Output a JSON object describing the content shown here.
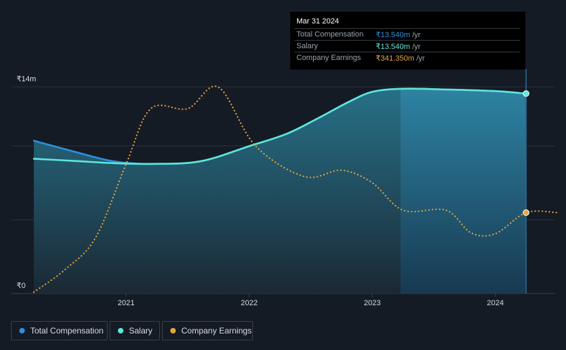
{
  "chart_data": {
    "type": "line",
    "x_ticks": [
      "2021",
      "2022",
      "2023",
      "2024"
    ],
    "y_ticks": [
      "₹14m",
      "₹0"
    ],
    "ylim_m": [
      0,
      14
    ],
    "series": [
      {
        "name": "Total Compensation",
        "color": "#2e8fe0",
        "points": [
          [
            2020.25,
            10.35
          ],
          [
            2020.6,
            9.56
          ],
          [
            2020.9,
            8.95
          ],
          [
            2021.2,
            8.78
          ],
          [
            2021.6,
            8.95
          ],
          [
            2022.0,
            9.98
          ],
          [
            2022.3,
            10.8
          ],
          [
            2022.55,
            11.83
          ],
          [
            2022.8,
            12.94
          ],
          [
            2023.0,
            13.66
          ],
          [
            2023.25,
            13.87
          ],
          [
            2023.6,
            13.82
          ],
          [
            2024.0,
            13.71
          ],
          [
            2024.25,
            13.54
          ]
        ]
      },
      {
        "name": "Salary",
        "color": "#5ee8d8",
        "points": [
          [
            2020.25,
            9.13
          ],
          [
            2020.6,
            8.97
          ],
          [
            2020.9,
            8.83
          ],
          [
            2021.2,
            8.78
          ],
          [
            2021.6,
            8.95
          ],
          [
            2022.0,
            9.98
          ],
          [
            2022.3,
            10.8
          ],
          [
            2022.55,
            11.83
          ],
          [
            2022.8,
            12.94
          ],
          [
            2023.0,
            13.66
          ],
          [
            2023.25,
            13.87
          ],
          [
            2023.6,
            13.82
          ],
          [
            2024.0,
            13.71
          ],
          [
            2024.25,
            13.54
          ]
        ]
      },
      {
        "name": "Company Earnings",
        "color": "#e8a640",
        "dotted": true,
        "points": [
          [
            2020.25,
            0.1
          ],
          [
            2020.5,
            1.6
          ],
          [
            2020.75,
            3.76
          ],
          [
            2021.0,
            8.78
          ],
          [
            2021.2,
            12.52
          ],
          [
            2021.5,
            12.52
          ],
          [
            2021.75,
            13.97
          ],
          [
            2022.05,
            10.01
          ],
          [
            2022.45,
            7.92
          ],
          [
            2022.75,
            8.35
          ],
          [
            2023.0,
            7.5
          ],
          [
            2023.25,
            5.64
          ],
          [
            2023.6,
            5.64
          ],
          [
            2023.8,
            4.12
          ],
          [
            2024.0,
            4.05
          ],
          [
            2024.25,
            5.48
          ],
          [
            2024.5,
            5.48
          ]
        ]
      }
    ],
    "tooltip": {
      "date": "Mar 31 2024",
      "rows": [
        {
          "label": "Total Compensation",
          "value": "₹13.540m",
          "unit": "/yr",
          "color": "#2e8fe0"
        },
        {
          "label": "Salary",
          "value": "₹13.540m",
          "unit": "/yr",
          "color": "#5ee8d8"
        },
        {
          "label": "Company Earnings",
          "value": "₹341.350m",
          "unit": "/yr",
          "color": "#e8a640"
        }
      ]
    },
    "legend": [
      "Total Compensation",
      "Salary",
      "Company Earnings"
    ]
  }
}
